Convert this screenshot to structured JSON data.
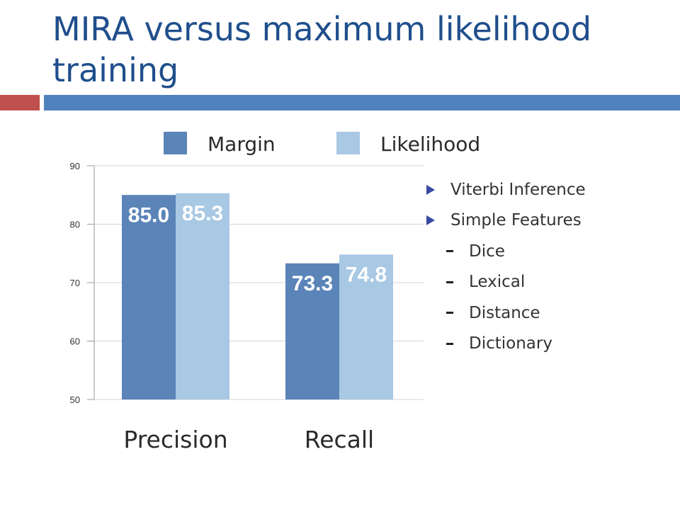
{
  "slide": {
    "title": "MIRA versus maximum likelihood training"
  },
  "chart_data": {
    "type": "bar",
    "categories": [
      "Precision",
      "Recall"
    ],
    "series": [
      {
        "name": "Margin",
        "values": [
          85.0,
          73.3
        ],
        "color": "#5b84b8"
      },
      {
        "name": "Likelihood",
        "values": [
          85.3,
          74.8
        ],
        "color": "#a8c8e4"
      }
    ],
    "data_labels": [
      [
        "85.0",
        "85.3"
      ],
      [
        "73.3",
        "74.8"
      ]
    ],
    "ylim": [
      50,
      90
    ],
    "yticks": [
      90,
      80,
      70,
      60,
      50
    ],
    "grid": true,
    "legend_position": "top",
    "title": "",
    "xlabel": "",
    "ylabel": ""
  },
  "bullets": {
    "main": [
      {
        "label": "Viterbi Inference"
      },
      {
        "label": "Simple Features"
      }
    ],
    "sub": [
      {
        "label": "Dice"
      },
      {
        "label": "Lexical"
      },
      {
        "label": "Distance"
      },
      {
        "label": "Dictionary"
      }
    ]
  }
}
